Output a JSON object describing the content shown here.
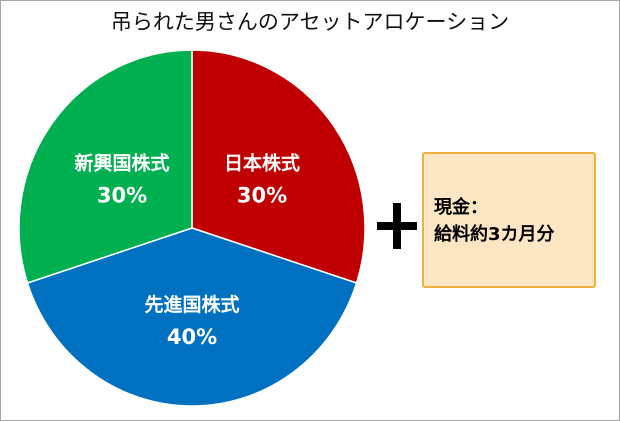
{
  "chart_data": {
    "type": "pie",
    "title": "吊られた男さんのアセットアロケーション",
    "slices": [
      {
        "label": "日本株式",
        "value": 30,
        "value_label": "30%",
        "color": "#c00000"
      },
      {
        "label": "先進国株式",
        "value": 40,
        "value_label": "40%",
        "color": "#0070c0"
      },
      {
        "label": "新興国株式",
        "value": 30,
        "value_label": "30%",
        "color": "#00b050"
      }
    ],
    "start_angle_deg": 0,
    "direction": "clockwise"
  },
  "side_note": {
    "line1": "現金：",
    "line2": "給料約3カ月分",
    "fill": "#fce6c4",
    "border": "#f0b040"
  }
}
